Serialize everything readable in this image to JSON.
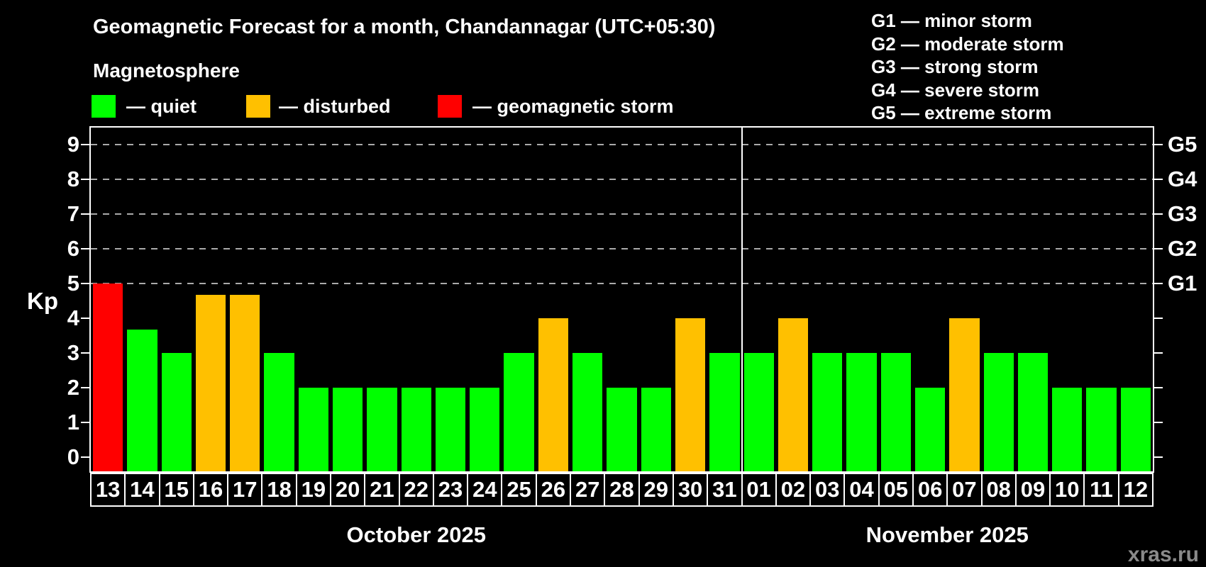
{
  "header": {
    "title": "Geomagnetic Forecast for a month, Chandannagar (UTC+05:30)",
    "subtitle": "Magnetosphere",
    "watermark": "xras.ru"
  },
  "legend": {
    "items": [
      {
        "status": "quiet",
        "label": "— quiet",
        "color": "#00ff00"
      },
      {
        "status": "disturbed",
        "label": "— disturbed",
        "color": "#ffc000"
      },
      {
        "status": "storm",
        "label": "— geomagnetic storm",
        "color": "#ff0000"
      }
    ]
  },
  "g_legend": {
    "items": [
      "G1 — minor storm",
      "G2 — moderate storm",
      "G3 — strong storm",
      "G4 — severe storm",
      "G5 — extreme storm"
    ]
  },
  "axes": {
    "y_label": "Kp",
    "y_ticks": [
      0,
      1,
      2,
      3,
      4,
      5,
      6,
      7,
      8,
      9
    ],
    "right_labels": [
      {
        "value": 5,
        "label": "G1"
      },
      {
        "value": 6,
        "label": "G2"
      },
      {
        "value": 7,
        "label": "G3"
      },
      {
        "value": 8,
        "label": "G4"
      },
      {
        "value": 9,
        "label": "G5"
      }
    ]
  },
  "chart_data": {
    "type": "bar",
    "title": "Geomagnetic Forecast for a month, Chandannagar (UTC+05:30)",
    "ylabel": "Kp",
    "ylim": [
      0,
      9.5
    ],
    "grid": "dashed horizontal at Kp 5-9",
    "gridlines": [
      5,
      6,
      7,
      8,
      9
    ],
    "categories": [
      "13",
      "14",
      "15",
      "16",
      "17",
      "18",
      "19",
      "20",
      "21",
      "22",
      "23",
      "24",
      "25",
      "26",
      "27",
      "28",
      "29",
      "30",
      "31",
      "01",
      "02",
      "03",
      "04",
      "05",
      "06",
      "07",
      "08",
      "09",
      "10",
      "11",
      "12"
    ],
    "series": [
      {
        "name": "Kp forecast",
        "values": [
          5,
          3.67,
          3,
          4.67,
          4.67,
          3,
          2,
          2,
          2,
          2,
          2,
          2,
          3,
          4,
          3,
          2,
          2,
          4,
          3,
          3,
          4,
          3,
          3,
          3,
          2,
          4,
          3,
          3,
          2,
          2,
          2
        ],
        "statuses": [
          "storm",
          "quiet",
          "quiet",
          "disturbed",
          "disturbed",
          "quiet",
          "quiet",
          "quiet",
          "quiet",
          "quiet",
          "quiet",
          "quiet",
          "quiet",
          "disturbed",
          "quiet",
          "quiet",
          "quiet",
          "disturbed",
          "quiet",
          "quiet",
          "disturbed",
          "quiet",
          "quiet",
          "quiet",
          "quiet",
          "disturbed",
          "quiet",
          "quiet",
          "quiet",
          "quiet",
          "quiet"
        ]
      }
    ],
    "status_colors": {
      "quiet": "#00ff00",
      "disturbed": "#ffc000",
      "storm": "#ff0000"
    },
    "months": [
      {
        "label": "October 2025",
        "days": 19
      },
      {
        "label": "November 2025",
        "days": 12
      }
    ],
    "month_split_index": 19
  }
}
